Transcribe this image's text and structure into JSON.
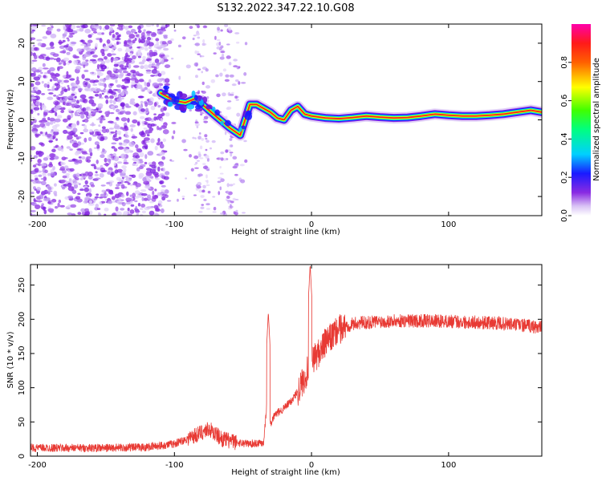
{
  "title": "S132.2022.347.22.10.G08",
  "colors": {
    "snr_line": "#e83a34",
    "spectral_low": "#8a2be2",
    "spectral_high": "#ff1a1a"
  },
  "chart_data": [
    {
      "type": "heatmap",
      "name": "spectrogram",
      "xlabel": "Height of straight line (km)",
      "ylabel": "Frequency (Hz)",
      "xlim": [
        -205,
        168
      ],
      "ylim": [
        -25,
        25
      ],
      "xticks": [
        -200,
        -100,
        0,
        100
      ],
      "yticks": [
        -20,
        -10,
        0,
        10,
        20
      ],
      "trace": {
        "x": [
          -110,
          -100,
          -92,
          -85,
          -78,
          -70,
          -60,
          -52,
          -45,
          -40,
          -35,
          -30,
          -25,
          -20,
          -15,
          -10,
          -5,
          0,
          10,
          20,
          30,
          40,
          50,
          60,
          70,
          80,
          90,
          100,
          110,
          120,
          130,
          140,
          150,
          160,
          168
        ],
        "y": [
          7,
          5,
          4.5,
          5.5,
          3.5,
          1,
          -2,
          -4,
          4,
          4,
          3,
          2,
          0.5,
          0,
          2.5,
          3.5,
          1.5,
          1,
          0.5,
          0.3,
          0.6,
          1,
          0.7,
          0.5,
          0.6,
          1,
          1.5,
          1.2,
          1,
          1,
          1.2,
          1.5,
          2,
          2.5,
          2
        ]
      }
    },
    {
      "type": "colorbar",
      "name": "amplitude-scale",
      "label": "Normalized spectral amplitude",
      "range": [
        0,
        1
      ],
      "ticks": [
        "0.0",
        "0.2",
        "0.4",
        "0.6",
        "0.8"
      ]
    },
    {
      "type": "line",
      "name": "snr",
      "xlabel": "Height of straight line (km)",
      "ylabel": "SNR (10 * v/v)",
      "xlim": [
        -205,
        168
      ],
      "ylim": [
        0,
        280
      ],
      "xticks": [
        -200,
        -100,
        0,
        100
      ],
      "yticks": [
        0,
        50,
        100,
        150,
        200,
        250
      ],
      "trend": {
        "x": [
          -205,
          -150,
          -120,
          -100,
          -85,
          -75,
          -65,
          -55,
          -45,
          -35,
          -32,
          -30,
          -27,
          -20,
          -15,
          -10,
          -5,
          0,
          5,
          10,
          15,
          20,
          25,
          30,
          35,
          40,
          50,
          70,
          100,
          130,
          150,
          168
        ],
        "y": [
          12,
          12,
          13,
          18,
          30,
          40,
          25,
          20,
          18,
          20,
          90,
          45,
          60,
          70,
          80,
          95,
          115,
          140,
          150,
          165,
          175,
          185,
          190,
          193,
          195,
          195,
          197,
          198,
          197,
          195,
          192,
          188
        ]
      },
      "spikes": [
        {
          "x": -31.5,
          "y": 210
        },
        {
          "x": -1,
          "y": 280
        }
      ]
    }
  ]
}
